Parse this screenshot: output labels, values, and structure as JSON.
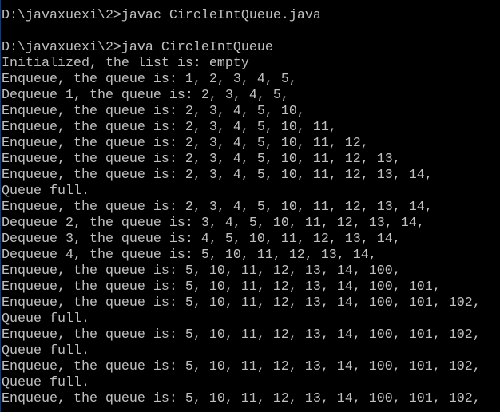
{
  "console": {
    "lines": [
      "D:\\javaxuexi\\2>javac CircleIntQueue.java",
      "",
      "D:\\javaxuexi\\2>java CircleIntQueue",
      "Initialized, the list is: empty",
      "Enqueue, the queue is: 1, 2, 3, 4, 5,",
      "Dequeue 1, the queue is: 2, 3, 4, 5,",
      "Enqueue, the queue is: 2, 3, 4, 5, 10,",
      "Enqueue, the queue is: 2, 3, 4, 5, 10, 11,",
      "Enqueue, the queue is: 2, 3, 4, 5, 10, 11, 12,",
      "Enqueue, the queue is: 2, 3, 4, 5, 10, 11, 12, 13,",
      "Enqueue, the queue is: 2, 3, 4, 5, 10, 11, 12, 13, 14,",
      "Queue full.",
      "Enqueue, the queue is: 2, 3, 4, 5, 10, 11, 12, 13, 14,",
      "Dequeue 2, the queue is: 3, 4, 5, 10, 11, 12, 13, 14,",
      "Dequeue 3, the queue is: 4, 5, 10, 11, 12, 13, 14,",
      "Dequeue 4, the queue is: 5, 10, 11, 12, 13, 14,",
      "Enqueue, the queue is: 5, 10, 11, 12, 13, 14, 100,",
      "Enqueue, the queue is: 5, 10, 11, 12, 13, 14, 100, 101,",
      "Enqueue, the queue is: 5, 10, 11, 12, 13, 14, 100, 101, 102,",
      "Queue full.",
      "Enqueue, the queue is: 5, 10, 11, 12, 13, 14, 100, 101, 102,",
      "Queue full.",
      "Enqueue, the queue is: 5, 10, 11, 12, 13, 14, 100, 101, 102,",
      "Queue full.",
      "Enqueue, the queue is: 5, 10, 11, 12, 13, 14, 100, 101, 102,"
    ]
  }
}
